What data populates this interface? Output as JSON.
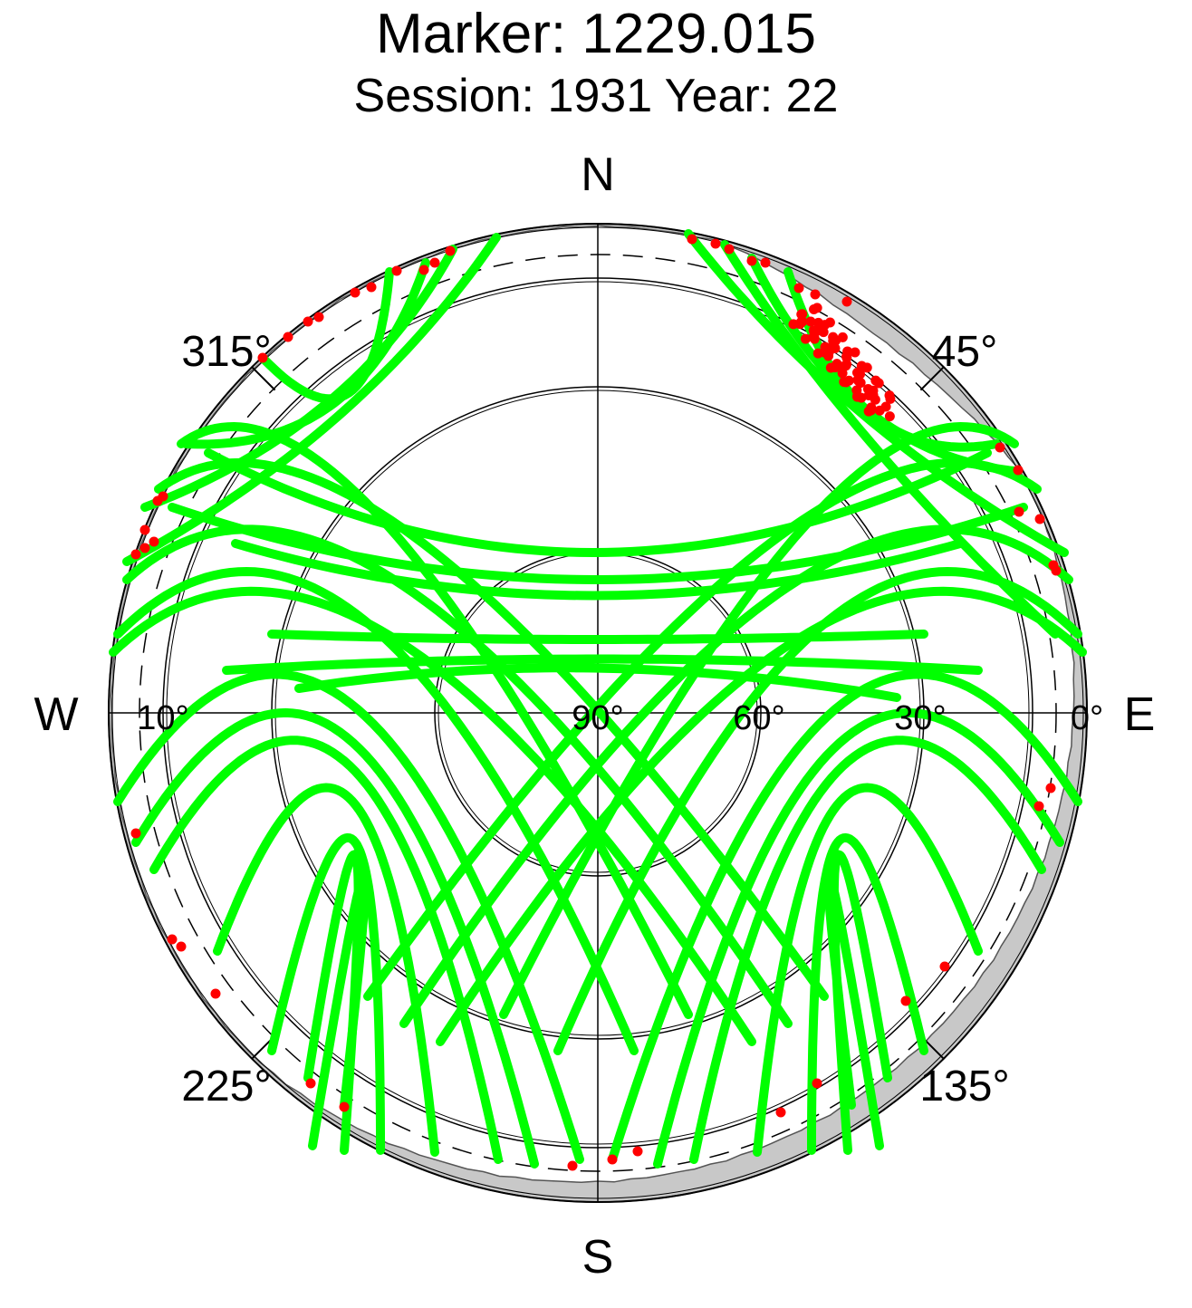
{
  "chart_data": {
    "type": "scatter",
    "projection": "polar-skyplot",
    "title": "Marker: 1229.015",
    "subtitle": "Session: 1931 Year: 22",
    "cardinal_labels": {
      "north": "N",
      "south": "S",
      "west": "W",
      "east": "E"
    },
    "azimuth_labels": [
      "45°",
      "135°",
      "225°",
      "315°"
    ],
    "elevation_labels": [
      "0°",
      "10°",
      "30°",
      "60°",
      "90°"
    ],
    "colors": {
      "tracks_above_mask": "#00ff00",
      "observations_below_mask": "#ff0000",
      "horizon_obstruction": "#c8c8c8",
      "grid": "#000000",
      "background": "#ffffff"
    },
    "elevation_circles_deg": [
      0,
      10,
      30,
      60
    ],
    "grid": true,
    "legend": "none"
  }
}
